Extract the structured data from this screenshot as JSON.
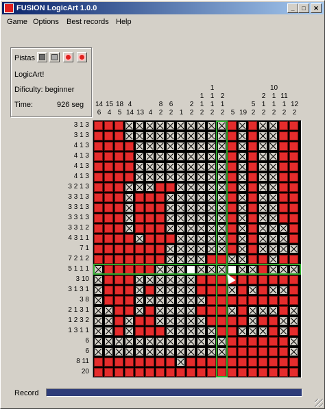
{
  "window": {
    "title": "FUSION LogicArt 1.0.0"
  },
  "menu": [
    "Game",
    "Options",
    "Best records",
    "Help"
  ],
  "panel": {
    "hints_label": "Pistas",
    "name": "LogicArt!",
    "difficulty": "Dificulty: beginner",
    "time_label": "Time:",
    "time_value": "926 seg"
  },
  "col_clues": [
    [
      "14",
      "6"
    ],
    [
      "15",
      "4"
    ],
    [
      "18",
      "5"
    ],
    [
      "4",
      "14"
    ],
    [
      "13"
    ],
    [
      "4"
    ],
    [
      "8",
      "2"
    ],
    [
      "6",
      "2"
    ],
    [
      "1"
    ],
    [
      "2",
      "2"
    ],
    [
      "1",
      "1",
      "2"
    ],
    [
      "1",
      "1",
      "1",
      "2"
    ],
    [
      "2",
      "1",
      "2"
    ],
    [
      "5"
    ],
    [
      "19"
    ],
    [
      "5",
      "2"
    ],
    [
      "2",
      "1",
      "2"
    ],
    [
      "10",
      "1",
      "1",
      "2"
    ],
    [
      "11",
      "1",
      "2"
    ],
    [
      "12",
      "2"
    ]
  ],
  "row_clues": [
    "3 1 3",
    "3 1 3",
    "4 1 3",
    "4 1 3",
    "4 1 3",
    "4 1 3",
    "3 2 1 3",
    "3 3 1 3",
    "3 3 1 3",
    "3 3 1 3",
    "3 3 1 2",
    "4 3 1 1",
    "7 1",
    "7 2 1 2",
    "5 1 1 1",
    "3 10",
    "3 1 3 1",
    "3 8",
    "2 1 3 1",
    "1 2 3 2",
    "1 3 1 1",
    "6",
    "6",
    "8 11",
    "20"
  ],
  "grid": [
    "FFFXXXXXXXXXXFXFXXFF",
    "FFFXXXXXXXXXXFXFXXFF",
    "FFFFXXXXXXXXXFXFXXFF",
    "FFFFXXXXXXXXXFXFXXFF",
    "FFFFXXXXXXXXXFXFXXFF",
    "FFFFXXXXXXXXXFXFXXFF",
    "FFFXXXFFXXXXXFXFXXFF",
    "FFFXFFFXXXXXXFXFXXFF",
    "FFFXFFFXXXXXXFXFXXFF",
    "FFFXFFFXXXXXXFXFXXFF",
    "FFFXFFFXXXXXXFXFXXXF",
    "FFFFXFFFXXXXXFXFXXXF",
    "FFFFFFFXXXXXXFXFXXXX",
    "FFFFFFFXXXXFFXXFFXFF",
    "XFFFFFXXXEXXXEXXFXXX",
    "XFFFXXXXXXFFFFFFFFFF",
    "XFFFXFXXXXFFFXFXFXXF",
    "XFFFXXXXXXXFFFFFFFFF",
    "XXFFXFXXXXFFFXFXXXFX",
    "XXFXFFXXXXXFFFFXFFXX",
    "XXFXFFFXXXXXFFXXXFXF",
    "XXXXXXXXXXXXXFFFFFFX",
    "XXXXXXXXXXXXXFFFFFFX",
    "FFFFFFFFXFFFFFFFFFFF",
    "FFFFFFFFFFFFFFFFFFFF"
  ],
  "highlight": {
    "row": 14,
    "col": 12
  },
  "record": {
    "label": "Record",
    "progress": 1.0
  },
  "colors": {
    "filled": "#e52c2c",
    "highlight": "#2fa92f",
    "record_bar": "#2e3c78",
    "titlebar": "#0a246a"
  },
  "icons": [
    "app-icon",
    "minimize-icon",
    "maximize-icon",
    "close-icon",
    "hint-reveal-icon",
    "hint-undo-icon",
    "hint-clear-icon",
    "hint-solve-icon",
    "mouse-cursor-icon",
    "resize-grip-icon"
  ]
}
